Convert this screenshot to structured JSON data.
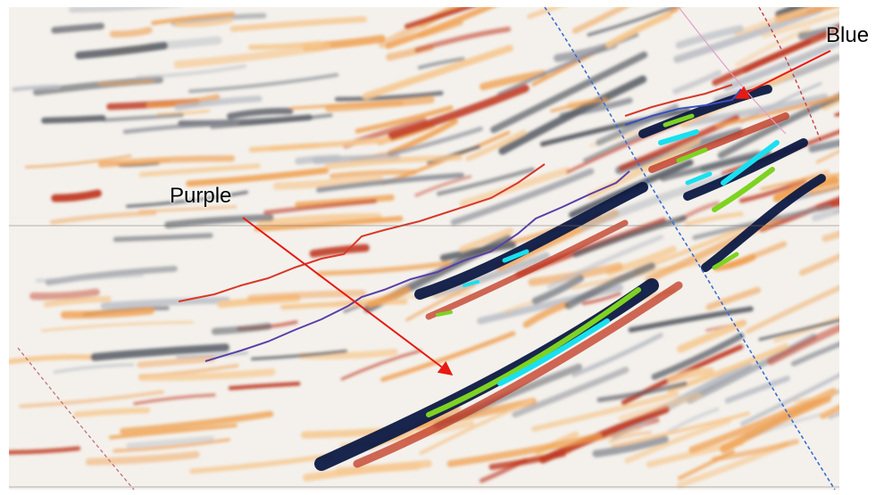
{
  "labels": {
    "purple": "Purple",
    "blue": "Blue"
  },
  "colors": {
    "annotation_arrow": "#e81a12",
    "horizon_red": "#d8392a",
    "horizon_purple": "#5a3fa8",
    "fault_blue": "#3a6fcf",
    "amplitude_green": "#7ed321",
    "amplitude_cyan": "#18e0f0",
    "trough_dark": "#0c1a44",
    "peak_orange": "#f0a050",
    "peak_red": "#c03a22",
    "neutral_gray": "#8a8e96"
  }
}
